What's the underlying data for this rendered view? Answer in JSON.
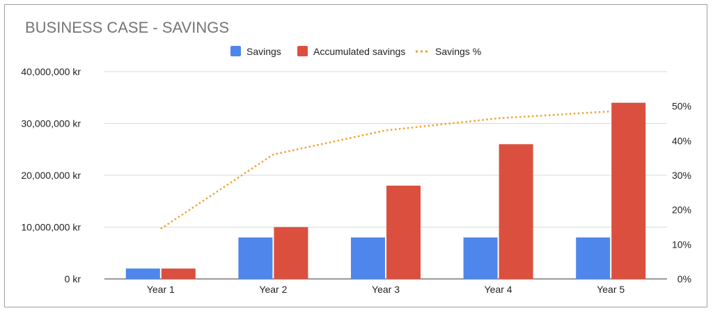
{
  "chart_data": {
    "type": "bar",
    "title": "BUSINESS CASE - SAVINGS",
    "categories": [
      "Year 1",
      "Year 2",
      "Year 3",
      "Year 4",
      "Year 5"
    ],
    "series": [
      {
        "name": "Savings",
        "kind": "bar",
        "axis": "left",
        "color": "#4f86ec",
        "values": [
          2000000,
          8000000,
          8000000,
          8000000,
          8000000
        ]
      },
      {
        "name": "Accumulated savings",
        "kind": "bar",
        "axis": "left",
        "color": "#db4f3f",
        "values": [
          2000000,
          10000000,
          18000000,
          26000000,
          34000000
        ]
      },
      {
        "name": "Savings %",
        "kind": "line",
        "style": "dotted",
        "axis": "right",
        "color": "#f1a02e",
        "values": [
          14.5,
          36,
          43,
          46.5,
          48.5
        ]
      }
    ],
    "left_axis": {
      "ylim": [
        0,
        40000000
      ],
      "ticks": [
        0,
        10000000,
        20000000,
        30000000,
        40000000
      ],
      "tick_labels": [
        "0 kr",
        "10,000,000 kr",
        "20,000,000 kr",
        "30,000,000 kr",
        "40,000,000 kr"
      ]
    },
    "right_axis": {
      "ylim": [
        0,
        60
      ],
      "ticks": [
        0,
        10,
        20,
        30,
        40,
        50
      ],
      "tick_labels": [
        "0%",
        "10%",
        "20%",
        "30%",
        "40%",
        "50%"
      ]
    },
    "legend_position": "top-center",
    "grid": true
  }
}
